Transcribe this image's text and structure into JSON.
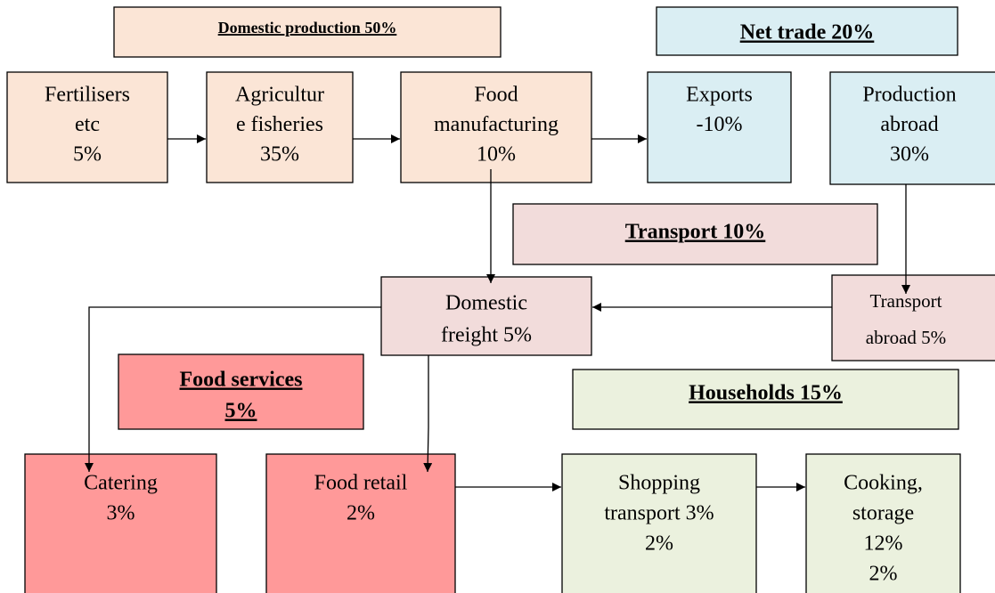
{
  "groups": [
    {
      "label": [
        "Domestic production 50%"
      ]
    },
    {
      "label": [
        "Net trade 20%"
      ]
    },
    {
      "label": [
        "Transport 10%"
      ]
    },
    {
      "label": [
        "Food services",
        "5%"
      ]
    },
    {
      "label": [
        "Households 15%"
      ]
    }
  ],
  "nodes": [
    {
      "lines": [
        "Fertilisers",
        "etc",
        "5%"
      ]
    },
    {
      "lines": [
        "Agricultur",
        "e fisheries",
        "35%"
      ]
    },
    {
      "lines": [
        "Food",
        "manufacturing",
        "10%"
      ]
    },
    {
      "lines": [
        "Exports",
        "-10%"
      ]
    },
    {
      "lines": [
        "Production",
        "abroad",
        "30%"
      ]
    },
    {
      "lines": [
        "Domestic",
        "freight 5%"
      ]
    },
    {
      "lines": [
        "Transport",
        "abroad 5%"
      ]
    },
    {
      "lines": [
        "Catering",
        "3%"
      ]
    },
    {
      "lines": [
        "Food retail",
        "2%"
      ]
    },
    {
      "lines": [
        "Shopping",
        "transport 3%",
        "2%"
      ]
    },
    {
      "lines": [
        "Cooking,",
        "storage",
        "12%",
        "2%"
      ]
    }
  ]
}
